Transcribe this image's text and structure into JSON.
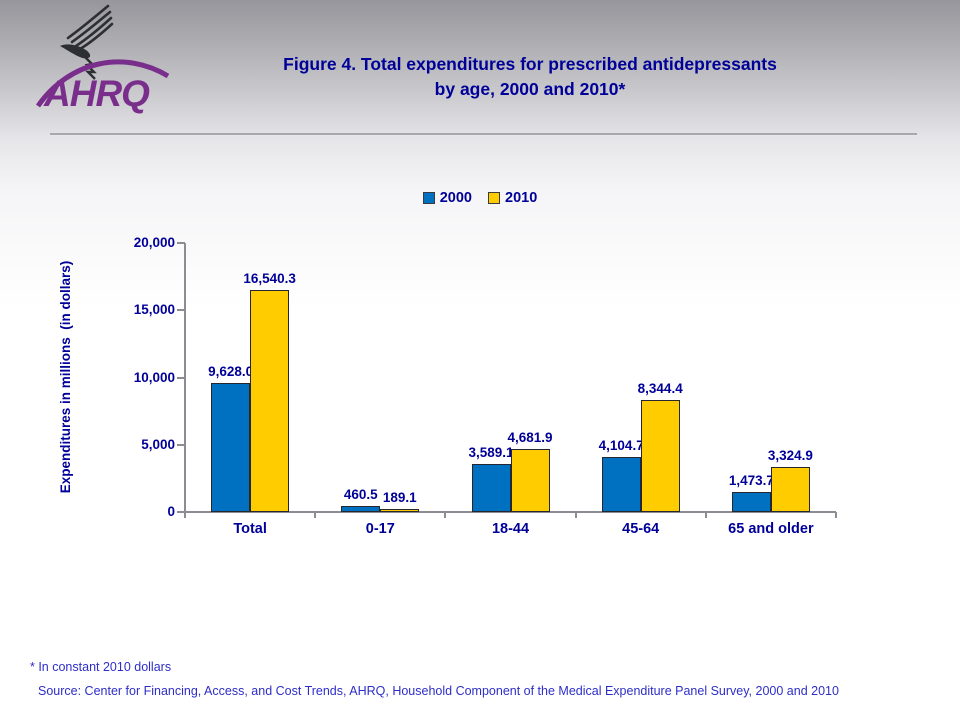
{
  "logo": {
    "org": "AHRQ",
    "eagle_icon": "hhs-eagle",
    "purple": "#7a2e8c",
    "eagle_color": "#2e2e35"
  },
  "title": {
    "line1": "Figure 4. Total expenditures for prescribed antidepressants",
    "line2": "by age, 2000 and 2010*"
  },
  "chart_data": {
    "type": "bar",
    "title": "Figure 4. Total expenditures for prescribed antidepressants by age, 2000 and 2010*",
    "categories": [
      "Total",
      "0-17",
      "18-44",
      "45-64",
      "65 and older"
    ],
    "series": [
      {
        "name": "2000",
        "color": "#0070c0",
        "values": [
          9628.0,
          460.5,
          3589.1,
          4104.7,
          1473.7
        ],
        "labels": [
          "9,628.0",
          "460.5",
          "3,589.1",
          "4,104.7",
          "1,473.7"
        ]
      },
      {
        "name": "2010",
        "color": "#ffcc00",
        "values": [
          16540.3,
          189.1,
          4681.9,
          8344.4,
          3324.9
        ],
        "labels": [
          "16,540.3",
          "189.1",
          "4,681.9",
          "8,344.4",
          "3,324.9"
        ]
      }
    ],
    "xlabel": "",
    "ylabel": "Expenditures in millions  (in dollars)",
    "ylim": [
      0,
      20000
    ],
    "yticks": [
      0,
      5000,
      10000,
      15000,
      20000
    ],
    "ytick_labels": [
      "0",
      "5,000",
      "10,000",
      "15,000",
      "20,000"
    ],
    "grid": false,
    "legend_position": "top"
  },
  "footer": {
    "footnote": "* In constant 2010 dollars",
    "source": "Source: Center for Financing, Access, and Cost Trends, AHRQ, Household Component of the Medical Expenditure Panel Survey, 2000 and 2010"
  },
  "colors": {
    "title_text": "#000099",
    "axis_line": "#8c8c92",
    "footer_text": "#2e2ec8",
    "bar_2000": "#0070c0",
    "bar_2010": "#ffcc00"
  }
}
